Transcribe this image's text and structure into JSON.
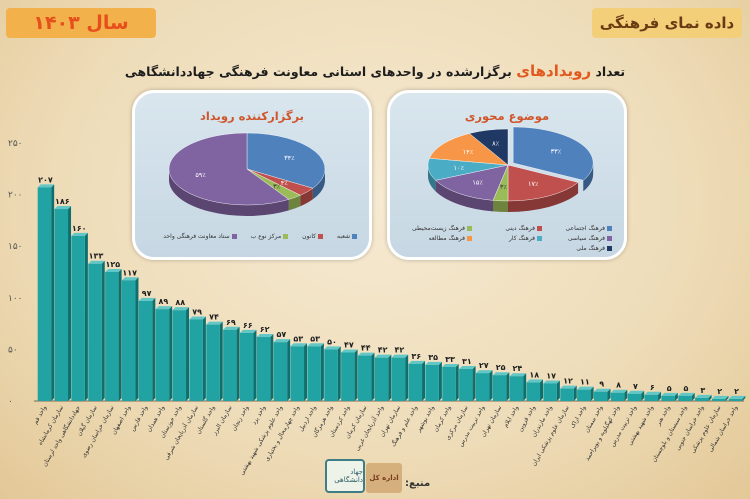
{
  "header": {
    "series_title": "داده نمای فرهنگی",
    "year_title": "سال ۱۴۰۳"
  },
  "main_title": {
    "before": "تعداد ",
    "highlight": "رویدادهای",
    "after": " برگزارشده در واحدهای استانی معاونت فرهنگی جهاددانشگاهی"
  },
  "colors": {
    "bar": "#21a3a3",
    "bar_side": "#0f6f6f",
    "title_accent": "#e05a1f"
  },
  "chart_data": [
    {
      "type": "bar",
      "title": "",
      "ylim": [
        0,
        250
      ],
      "ytick_labels": [
        "۰",
        "۵۰",
        "۱۰۰",
        "۱۵۰",
        "۲۰۰",
        "۲۵۰"
      ],
      "values": [
        207,
        186,
        160,
        133,
        125,
        117,
        97,
        89,
        88,
        79,
        74,
        69,
        66,
        62,
        57,
        53,
        53,
        50,
        47,
        44,
        42,
        42,
        36,
        35,
        33,
        31,
        27,
        25,
        24,
        18,
        17,
        12,
        11,
        9,
        8,
        7,
        6,
        5,
        5,
        3,
        2,
        2
      ],
      "value_labels": [
        "۲۰۷",
        "۱۸۶",
        "۱۶۰",
        "۱۳۳",
        "۱۲۵",
        "۱۱۷",
        "۹۷",
        "۸۹",
        "۸۸",
        "۷۹",
        "۷۴",
        "۶۹",
        "۶۶",
        "۶۲",
        "۵۷",
        "۵۳",
        "۵۳",
        "۵۰",
        "۴۷",
        "۴۴",
        "۴۲",
        "۴۲",
        "۳۶",
        "۳۵",
        "۳۳",
        "۳۱",
        "۲۷",
        "۲۵",
        "۲۴",
        "۱۸",
        "۱۷",
        "۱۲",
        "۱۱",
        "۹",
        "۸",
        "۷",
        "۶",
        "۵",
        "۵",
        "۳",
        "۲",
        "۲"
      ],
      "categories": [
        "واحد قم",
        "سازمان کرمانشاه",
        "جهاددانشگاهی واحد لرستان",
        "سازمان گیلان",
        "سازمان خراسان رضوی",
        "واحد اصفهان",
        "واحد فارس",
        "واحد همدان",
        "واحد خوزستان",
        "سازمان آذربایجان شرقی",
        "واحد گلستان",
        "سازمان البرز",
        "واحد زنجان",
        "واحد یزد",
        "واحد علوم پزشکی شهید بهشتی",
        "واحد چهارمحال و بختیاری",
        "واحد اردبیل",
        "واحد هرمزگان",
        "واحد کردستان",
        "سازمان کرمان",
        "واحد آذربایجان غربی",
        "سازمان تهران",
        "واحد علم و فرهنگ",
        "واحد بوشهر",
        "واحد کرمان",
        "سازمان مرکزی",
        "واحد تربیت مدرس",
        "سازمان تهران",
        "واحد ایلام",
        "واحد قزوین",
        "واحد مازندران",
        "سازمان علوم پزشکی ایران",
        "واحد اراک",
        "واحد سمنان",
        "واحد کهگیلویه و بویراحمد",
        "واحد تربیت مدرس",
        "واحد شهید بهشتی",
        "واحد هنر",
        "واحد سیستان و بلوچستان",
        "واحد خراسان جنوبی",
        "سازمان علوم پزشکی",
        "واحد خراسان شمالی"
      ]
    },
    {
      "type": "pie",
      "title": "برگزارکننده رویداد",
      "slices": [
        {
          "name": "شعبه",
          "value": 34,
          "label": "۳۴٪",
          "color": "#4f81bd"
        },
        {
          "name": "کانون",
          "value": 4,
          "label": "۴٪",
          "color": "#c0504d"
        },
        {
          "name": "مرکز نوع ب",
          "value": 3,
          "label": "۳٪",
          "color": "#9bbb59"
        },
        {
          "name": "ستاد معاونت فرهنگی واحد",
          "value": 59,
          "label": "۵۹٪",
          "color": "#8064a2"
        }
      ]
    },
    {
      "type": "pie",
      "title": "موضوع محوری",
      "slices": [
        {
          "name": "فرهنگ اجتماعی",
          "value": 33,
          "label": "۳۳٪",
          "color": "#4f81bd"
        },
        {
          "name": "فرهنگ دینی",
          "value": 17,
          "label": "۱۷٪",
          "color": "#c0504d"
        },
        {
          "name": "فرهنگ زیست‌محیطی",
          "value": 3,
          "label": "۳٪",
          "color": "#9bbb59"
        },
        {
          "name": "فرهنگ سیاسی",
          "value": 15,
          "label": "۱۵٪",
          "color": "#8064a2"
        },
        {
          "name": "فرهنگ کار",
          "value": 10,
          "label": "۱۰٪",
          "color": "#4bacc6"
        },
        {
          "name": "فرهنگ مطالعه",
          "value": 14,
          "label": "۱۴٪",
          "color": "#f79646"
        },
        {
          "name": "فرهنگ ملی",
          "value": 8,
          "label": "۸٪",
          "color": "#1f3864"
        }
      ]
    }
  ],
  "source": {
    "label": "منبع:",
    "logo_1": "جهاد دانشگاهی",
    "logo_2": "اداره کل"
  }
}
